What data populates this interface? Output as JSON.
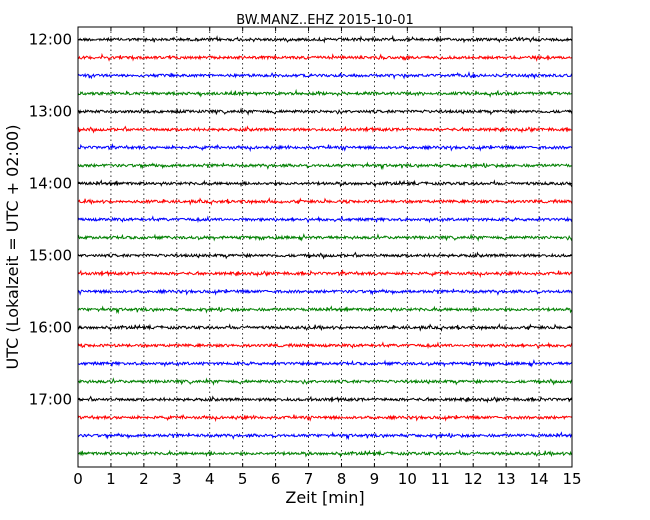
{
  "chart_data": {
    "type": "line",
    "title": "BW.MANZ..EHZ 2015-10-01",
    "xlabel": "Zeit  [min]",
    "ylabel": "UTC (Lokalzeit = UTC + 02:00)",
    "xlim": [
      0,
      15
    ],
    "x_ticks": [
      "0",
      "1",
      "2",
      "3",
      "4",
      "5",
      "6",
      "7",
      "8",
      "9",
      "10",
      "11",
      "12",
      "13",
      "14",
      "15"
    ],
    "y_ticks": [
      "12:00",
      "13:00",
      "14:00",
      "15:00",
      "16:00",
      "17:00"
    ],
    "grid": "vertical dotted",
    "trace_colors": [
      "#000000",
      "#ff0000",
      "#0000ff",
      "#008000"
    ],
    "trace_start_times": [
      "12:00",
      "12:15",
      "12:30",
      "12:45",
      "13:00",
      "13:15",
      "13:30",
      "13:45",
      "14:00",
      "14:15",
      "14:30",
      "14:45",
      "15:00",
      "15:15",
      "15:30",
      "15:45",
      "16:00",
      "16:15",
      "16:30",
      "16:45",
      "17:00",
      "17:15",
      "17:30",
      "17:45"
    ],
    "trace_duration_min": 15
  }
}
